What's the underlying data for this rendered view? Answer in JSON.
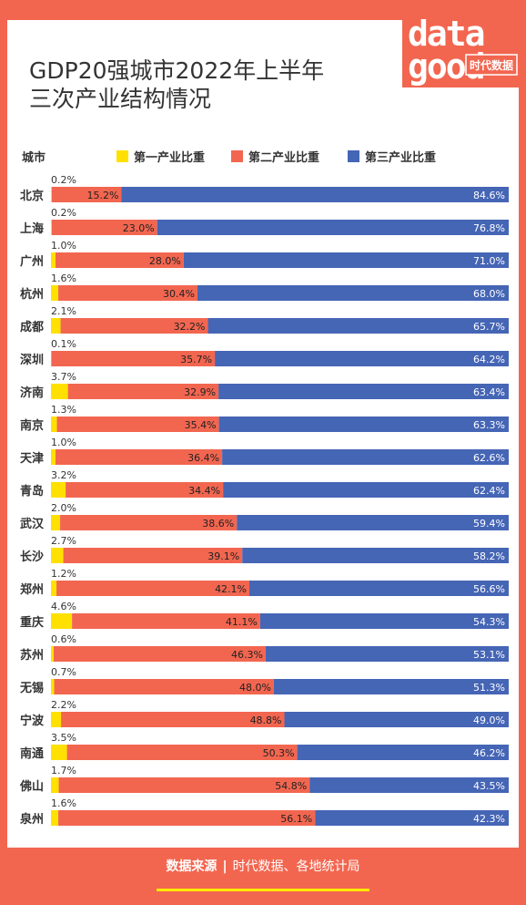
{
  "title_lines": [
    "GDP20强城市2022年上半年",
    "三次产业结构情况"
  ],
  "logo": {
    "top": "data",
    "bottom": "good",
    "tag": "时代数据"
  },
  "legend": {
    "header": "城市",
    "items": [
      {
        "label": "第一产业比重",
        "color": "#ffe000"
      },
      {
        "label": "第二产业比重",
        "color": "#f26650"
      },
      {
        "label": "第三产业比重",
        "color": "#4565b5"
      }
    ]
  },
  "footer": {
    "source_label": "数据来源",
    "separator": "|",
    "source_text": "时代数据、各地统计局"
  },
  "chart_data": {
    "type": "bar",
    "orientation": "horizontal",
    "stacked": true,
    "unit": "%",
    "categories": [
      "北京",
      "上海",
      "广州",
      "杭州",
      "成都",
      "深圳",
      "济南",
      "南京",
      "天津",
      "青岛",
      "武汉",
      "长沙",
      "郑州",
      "重庆",
      "苏州",
      "无锡",
      "宁波",
      "南通",
      "佛山",
      "泉州"
    ],
    "series": [
      {
        "name": "第一产业比重",
        "color": "#ffe000",
        "values": [
          0.2,
          0.2,
          1.0,
          1.6,
          2.1,
          0.1,
          3.7,
          1.3,
          1.0,
          3.2,
          2.0,
          2.7,
          1.2,
          4.6,
          0.6,
          0.7,
          2.2,
          3.5,
          1.7,
          1.6
        ]
      },
      {
        "name": "第二产业比重",
        "color": "#f26650",
        "values": [
          15.2,
          23.0,
          28.0,
          30.4,
          32.2,
          35.7,
          32.9,
          35.4,
          36.4,
          34.4,
          38.6,
          39.1,
          42.1,
          41.1,
          46.3,
          48.0,
          48.8,
          50.3,
          54.8,
          56.1
        ]
      },
      {
        "name": "第三产业比重",
        "color": "#4565b5",
        "values": [
          84.6,
          76.8,
          71.0,
          68.0,
          65.7,
          64.2,
          63.4,
          63.3,
          62.6,
          62.4,
          59.4,
          58.2,
          56.6,
          54.3,
          53.1,
          51.3,
          49.0,
          46.2,
          43.5,
          42.3
        ]
      }
    ]
  }
}
